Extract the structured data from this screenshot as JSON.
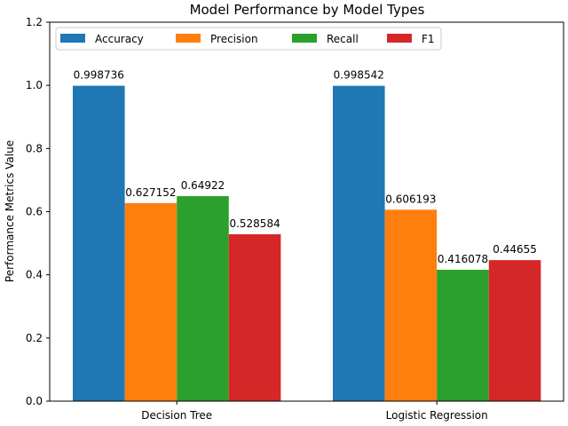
{
  "chart_data": {
    "type": "bar",
    "title": "Model Performance by Model Types",
    "xlabel": "",
    "ylabel": "Performance Metrics Value",
    "categories": [
      "Decision Tree",
      "Logistic Regression"
    ],
    "series": [
      {
        "name": "Accuracy",
        "color": "#1f77b4",
        "values": [
          0.998736,
          0.998542
        ],
        "labels": [
          "0.998736",
          "0.998542"
        ]
      },
      {
        "name": "Precision",
        "color": "#ff7f0e",
        "values": [
          0.627152,
          0.606193
        ],
        "labels": [
          "0.627152",
          "0.606193"
        ]
      },
      {
        "name": "Recall",
        "color": "#2ca02c",
        "values": [
          0.64922,
          0.416078
        ],
        "labels": [
          "0.64922",
          "0.416078"
        ]
      },
      {
        "name": "F1",
        "color": "#d62728",
        "values": [
          0.528584,
          0.44655
        ],
        "labels": [
          "0.528584",
          "0.44655"
        ]
      }
    ],
    "ylim": [
      0,
      1.2
    ],
    "yticks": [
      "0.0",
      "0.2",
      "0.4",
      "0.6",
      "0.8",
      "1.0",
      "1.2"
    ],
    "grid": false,
    "legend_position": "top-left"
  }
}
